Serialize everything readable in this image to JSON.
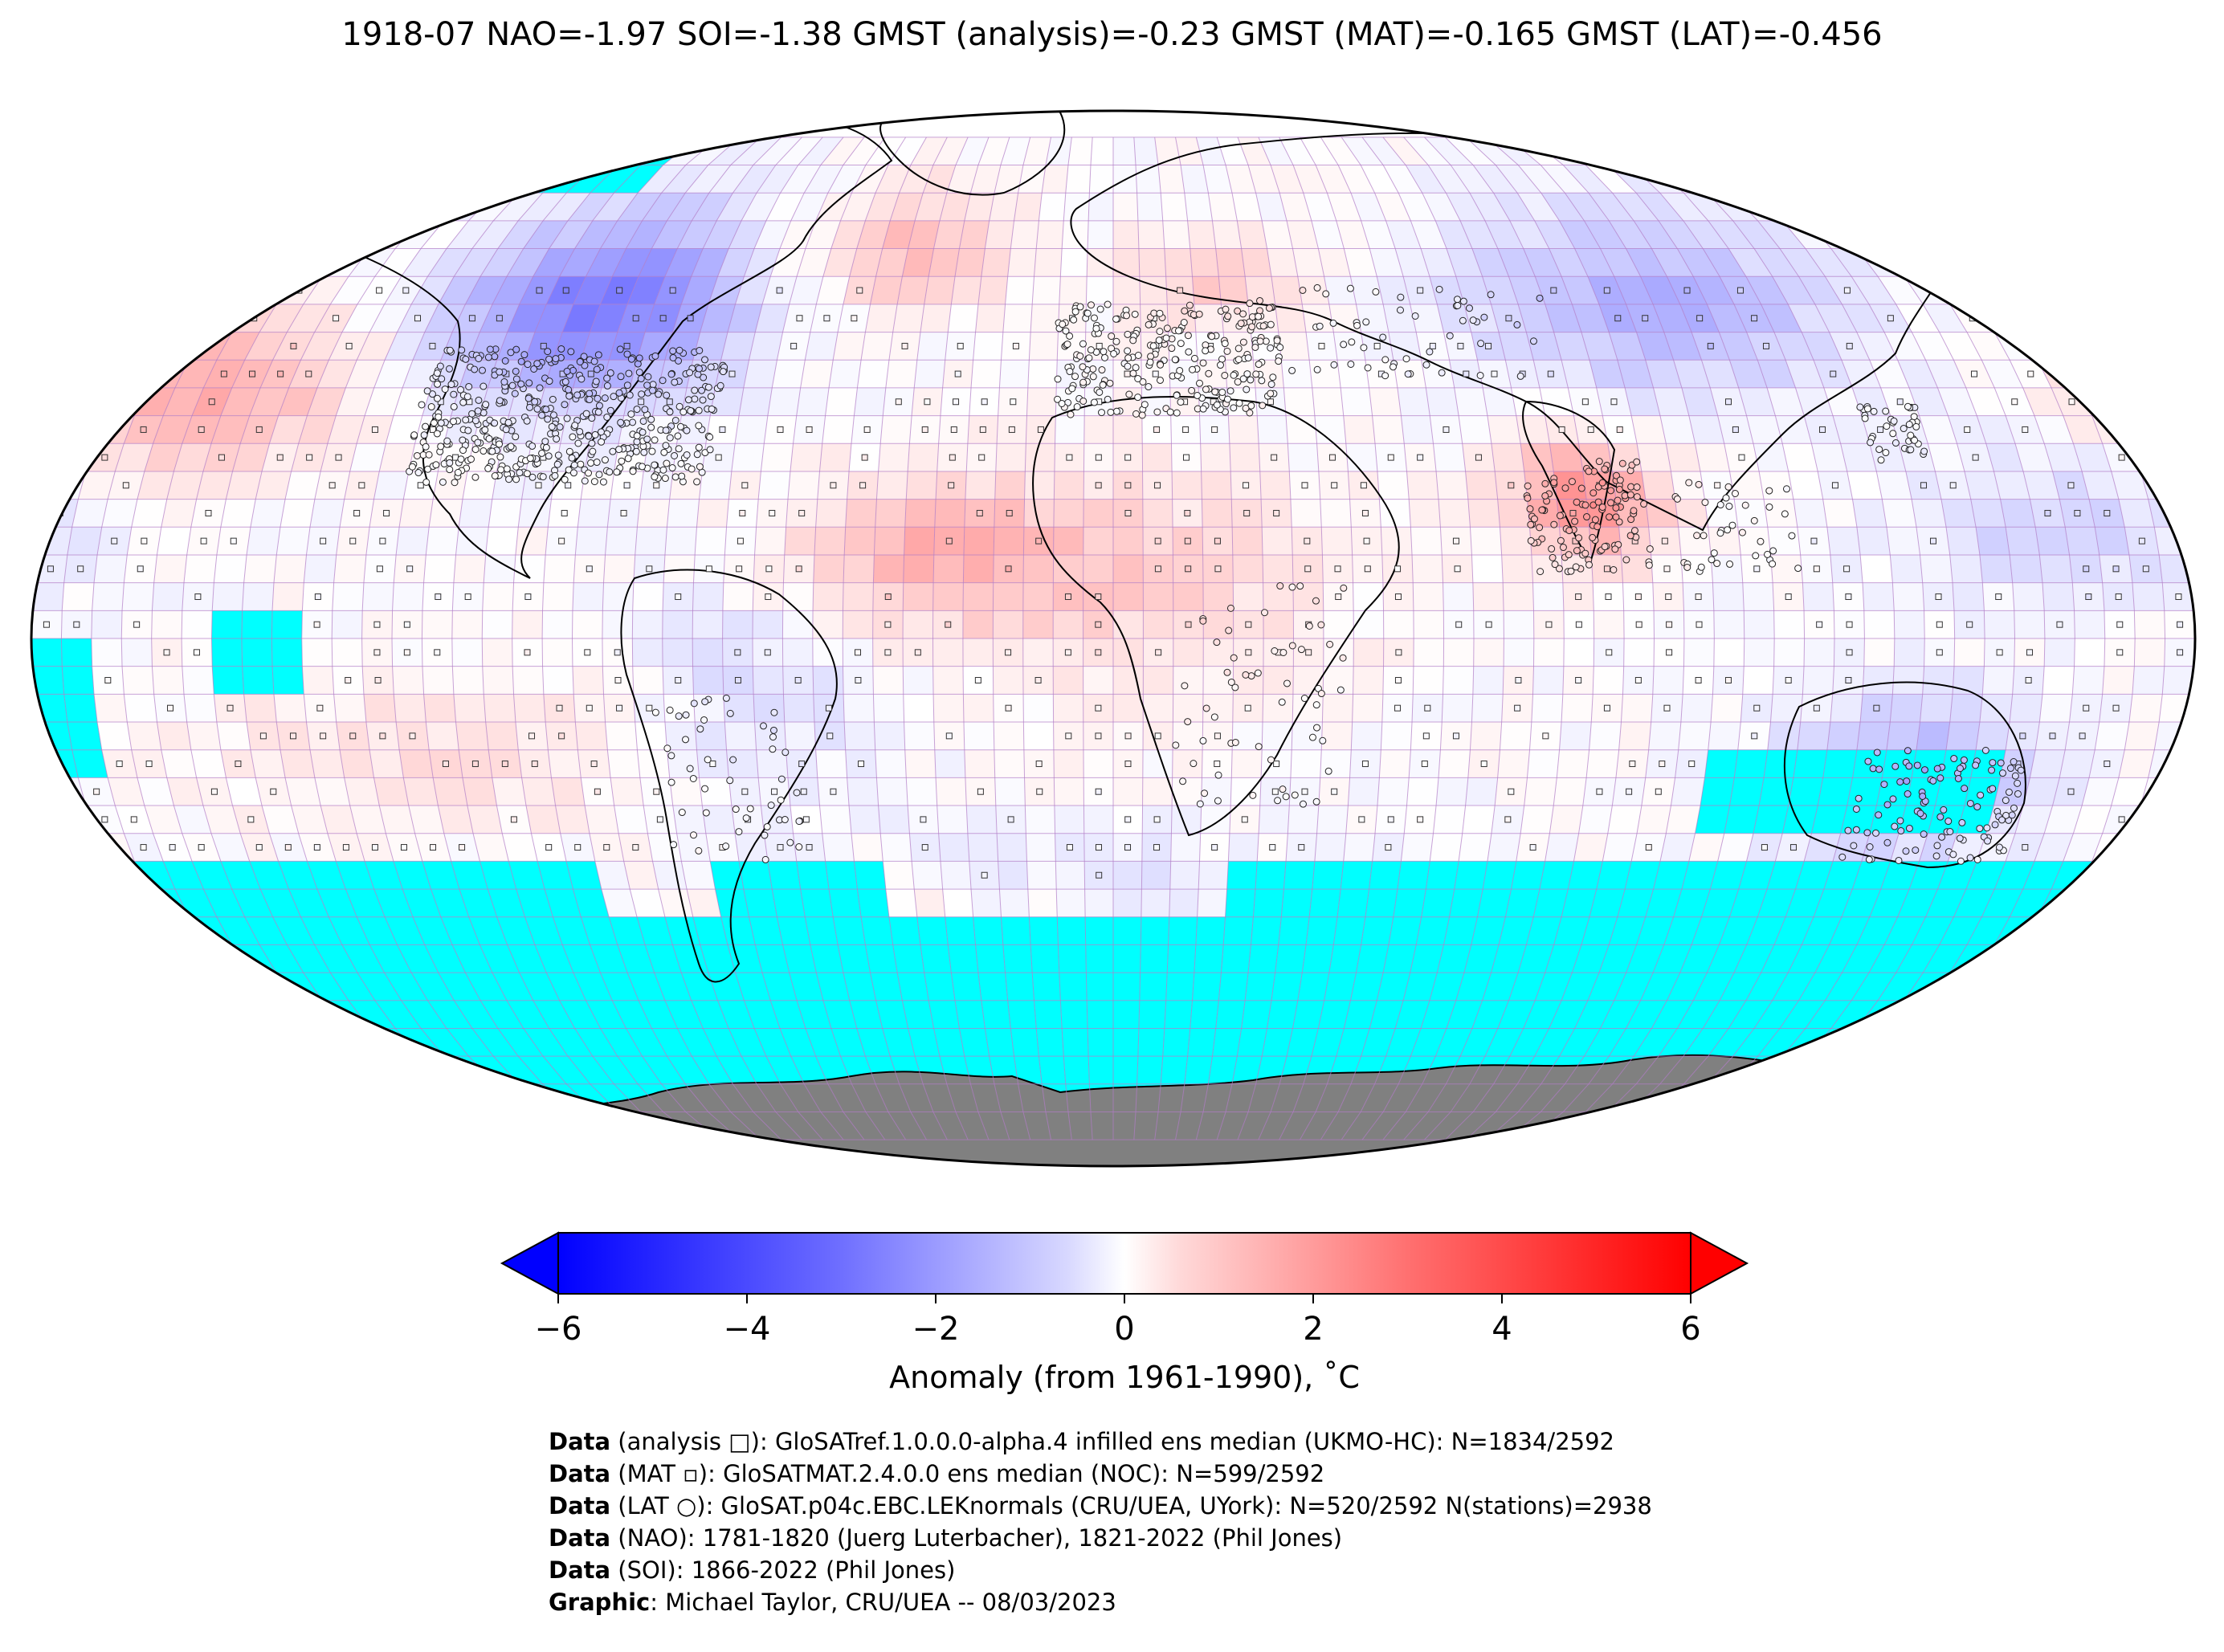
{
  "title": "1918-07 NAO=-1.97 SOI=-1.38 GMST (analysis)=-0.23 GMST (MAT)=-0.165 GMST (LAT)=-0.456",
  "colors": {
    "ocean_missing": "#00ffff",
    "antarctica": "#808080",
    "grid_line": "#b07cc6",
    "cold": "#0000ff",
    "neutral": "#ffffff",
    "warm": "#ff0000",
    "coastline": "#000000"
  },
  "map": {
    "projection": "Robinson",
    "grid": "5x5 degree",
    "markers": {
      "analysis": "square",
      "mat": "small square",
      "lat": "circle"
    }
  },
  "colorbar": {
    "min": -6,
    "max": 6,
    "ticks": [
      "−6",
      "−4",
      "−2",
      "0",
      "2",
      "4",
      "6"
    ],
    "tick_values": [
      -6,
      -4,
      -2,
      0,
      2,
      4,
      6
    ],
    "label": "Anomaly (from 1961-1990), ˚C",
    "extend": "both"
  },
  "anomaly_regions": [
    {
      "region": "North America (Canada)",
      "anomaly": -3.0
    },
    {
      "region": "North Pacific",
      "anomaly": 2.0
    },
    {
      "region": "Tropical Atlantic",
      "anomaly": 1.8
    },
    {
      "region": "India",
      "anomaly": 2.5
    },
    {
      "region": "Australia",
      "anomaly": -2.0
    },
    {
      "region": "Siberia",
      "anomaly": -1.8
    },
    {
      "region": "Greenland",
      "anomaly": 1.5
    }
  ],
  "credits": [
    {
      "bold": "Data",
      "text": " (analysis □): GloSATref.1.0.0.0-alpha.4 infilled ens median (UKMO-HC): N=1834/2592"
    },
    {
      "bold": "Data",
      "text": " (MAT ▫): GloSATMAT.2.4.0.0 ens median (NOC): N=599/2592"
    },
    {
      "bold": "Data",
      "text": " (LAT ○): GloSAT.p04c.EBC.LEKnormals (CRU/UEA, UYork): N=520/2592 N(stations)=2938"
    },
    {
      "bold": "Data",
      "text": " (NAO): 1781-1820 (Juerg Luterbacher), 1821-2022 (Phil Jones)"
    },
    {
      "bold": "Data",
      "text": " (SOI): 1866-2022 (Phil Jones)"
    },
    {
      "bold": "Graphic",
      "text": ": Michael Taylor, CRU/UEA -- 08/03/2023"
    }
  ]
}
